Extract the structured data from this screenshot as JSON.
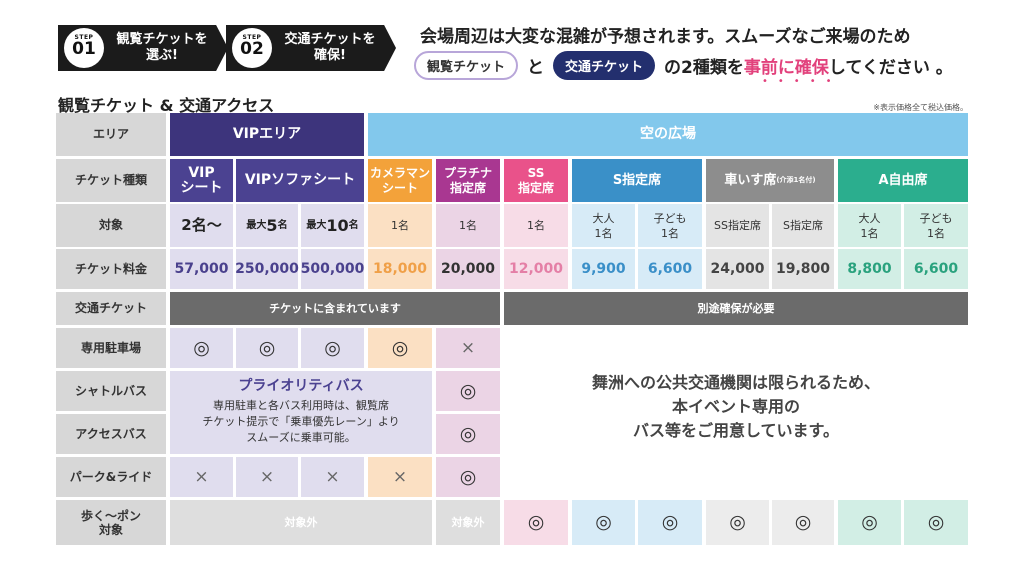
{
  "steps": [
    {
      "label": "STEP",
      "num": "01",
      "line1": "観覧チケットを",
      "line2": "選ぶ!"
    },
    {
      "label": "STEP",
      "num": "02",
      "line1": "交通チケットを",
      "line2": "確保!"
    }
  ],
  "lead": {
    "line1": "会場周辺は大変な混雑が予想されます。スムーズなご来場のため",
    "ticket_pill": "観覧チケット",
    "conj": "と",
    "transit_pill": "交通チケット",
    "tail_a": "の2種類を",
    "tail_b": "事前に確保",
    "tail_c": "してください 。",
    "dots": "•••••"
  },
  "section_title": "観覧チケット & 交通アクセス",
  "tax_note": "※表示価格全て税込価格。",
  "rows": {
    "area": "エリア",
    "type": "チケット種類",
    "target": "対象",
    "price": "チケット料金",
    "transit": "交通チケット",
    "parking": "専用駐車場",
    "shuttle": "シャトルバス",
    "access": "アクセスバス",
    "park_ride": "パーク&ライド",
    "walk": "歩く～ポン\n対象"
  },
  "areas": {
    "vip": "VIPエリア",
    "sky": "空の広場"
  },
  "types": {
    "vip": "VIP\nシート",
    "vip_sofa": "VIPソファシート",
    "camera": "カメラマン\nシート",
    "platinum": "プラチナ\n指定席",
    "ss": "SS\n指定席",
    "s": "S指定席",
    "wheel": "車いす席",
    "wheel_note": "(介添1名付)",
    "a": "A自由席"
  },
  "targets": {
    "vip": "2名～",
    "sofa5_a": "最大",
    "sofa5_b": "5",
    "sofa5_c": "名",
    "sofa10_a": "最大",
    "sofa10_b": "10",
    "sofa10_c": "名",
    "camera": "1名",
    "platinum": "1名",
    "ss": "1名",
    "s_adult": "大人\n1名",
    "s_child": "子ども\n1名",
    "wc_ss": "SS指定席",
    "wc_s": "S指定席",
    "a_adult": "大人\n1名",
    "a_child": "子ども\n1名"
  },
  "prices": {
    "vip": "57,000",
    "sofa5": "250,000",
    "sofa10": "500,000",
    "camera": "18,000",
    "platinum": "20,000",
    "ss": "12,000",
    "s_adult": "9,900",
    "s_child": "6,600",
    "wc_ss": "24,000",
    "wc_s": "19,800",
    "a_adult": "8,800",
    "a_child": "6,600"
  },
  "transit_bars": {
    "included": "チケットに含まれています",
    "separate": "別途確保が必要"
  },
  "marks": {
    "double_circle": "◎",
    "cross": "×"
  },
  "priority": {
    "title": "プライオリティバス",
    "body": "専用駐車と各バス利用時は、観覧席\nチケット提示で「乗車優先レーン」より\nスムーズに乗車可能。"
  },
  "notice": "舞洲への公共交通機関は限られるため、\n本イベント専用の\nバス等をご用意しています。",
  "out_of_scope": "対象外",
  "colors": {
    "vip": "#3d347c",
    "sky": "#82c8ec",
    "camera": "#f3a23a",
    "platinum": "#a93791",
    "ss": "#e9528a",
    "s": "#3a90c8",
    "wheel": "#8d8d8d",
    "a": "#2bae8e",
    "accent": "#e2417c"
  }
}
